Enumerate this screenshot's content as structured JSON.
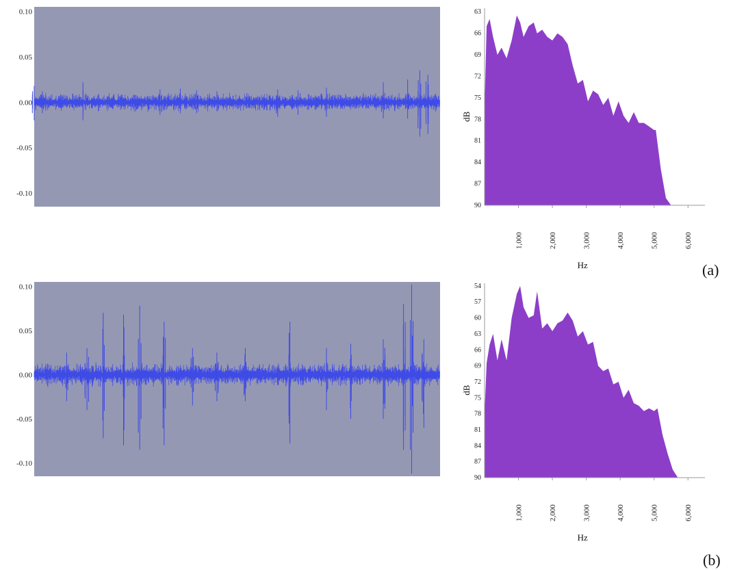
{
  "colors": {
    "wave_bg": "#9598b3",
    "wave_line": "#3f4be6",
    "spectrum_fill": "#8c3ec9",
    "axis": "#9a9a9a"
  },
  "chart_data": [
    {
      "id": "a-waveform",
      "type": "line",
      "title": "",
      "xlabel": "",
      "ylabel": "",
      "ylim": [
        -0.115,
        0.105
      ],
      "yticks": [
        "0.10",
        "0.05",
        "0.00",
        "-0.05",
        "-0.10"
      ],
      "ytick_values": [
        0.1,
        0.05,
        0.0,
        -0.05,
        -0.1
      ],
      "series": [
        {
          "x": [
            0,
            0.02,
            0.12,
            0.25,
            0.31,
            0.36,
            0.4,
            0.45,
            0.6,
            0.65,
            0.72,
            0.86,
            0.92,
            0.95,
            0.97
          ],
          "peak": [
            0.018,
            0.012,
            0.022,
            0.008,
            0.014,
            0.015,
            0.013,
            0.012,
            0.014,
            0.013,
            0.016,
            0.022,
            0.025,
            0.035,
            0.03
          ],
          "trough": [
            -0.02,
            -0.012,
            -0.02,
            -0.01,
            -0.014,
            -0.012,
            -0.012,
            -0.01,
            -0.016,
            -0.014,
            -0.016,
            -0.018,
            -0.018,
            -0.038,
            -0.035
          ]
        }
      ],
      "noise_amplitude": 0.006,
      "grid": false
    },
    {
      "id": "a-spectrum",
      "type": "area",
      "title": "",
      "xlabel": "Hz",
      "ylabel": "dB",
      "xlim": [
        0,
        6500
      ],
      "xticks": [
        "1,000",
        "2,000",
        "3,000",
        "4,000",
        "5,000",
        "6,000"
      ],
      "xtick_values": [
        1000,
        2000,
        3000,
        4000,
        5000,
        6000
      ],
      "yticks": [
        "63",
        "66",
        "69",
        "72",
        "75",
        "78",
        "81",
        "84",
        "87",
        "90"
      ],
      "ytick_values": [
        63,
        66,
        69,
        72,
        75,
        78,
        81,
        84,
        87,
        90
      ],
      "ylim": [
        62.5,
        90
      ],
      "series": [
        {
          "x": [
            0,
            60,
            150,
            250,
            380,
            500,
            650,
            800,
            950,
            1050,
            1150,
            1300,
            1450,
            1550,
            1700,
            1850,
            2000,
            2150,
            2300,
            2450,
            2600,
            2750,
            2900,
            3050,
            3200,
            3350,
            3500,
            3650,
            3800,
            3950,
            4100,
            4250,
            4400,
            4550,
            4700,
            4850,
            5000,
            5050,
            5200,
            5350,
            5500,
            5600,
            6500
          ],
          "y": [
            76.5,
            65.0,
            64.0,
            66.5,
            69.0,
            68.0,
            69.5,
            67.0,
            63.5,
            64.5,
            66.5,
            65.0,
            64.5,
            66.0,
            65.5,
            66.5,
            67.0,
            66.0,
            66.5,
            67.5,
            70.5,
            73.0,
            72.5,
            75.5,
            74.0,
            74.5,
            76.0,
            75.0,
            77.5,
            75.5,
            77.5,
            78.5,
            77.0,
            78.5,
            78.5,
            79.0,
            79.5,
            79.5,
            85.0,
            89.0,
            90.0,
            90.0,
            90.0
          ]
        }
      ],
      "grid": false
    },
    {
      "id": "b-waveform",
      "type": "line",
      "title": "",
      "xlabel": "",
      "ylabel": "",
      "ylim": [
        -0.115,
        0.105
      ],
      "yticks": [
        "0.10",
        "0.05",
        "0.00",
        "-0.05",
        "-0.10"
      ],
      "ytick_values": [
        0.1,
        0.05,
        0.0,
        -0.05,
        -0.1
      ],
      "series": [
        {
          "x": [
            0.08,
            0.13,
            0.17,
            0.22,
            0.26,
            0.32,
            0.39,
            0.45,
            0.52,
            0.63,
            0.72,
            0.78,
            0.86,
            0.91,
            0.93,
            0.96
          ],
          "peak": [
            0.025,
            0.03,
            0.07,
            0.068,
            0.078,
            0.06,
            0.03,
            0.025,
            0.03,
            0.06,
            0.03,
            0.035,
            0.04,
            0.08,
            0.102,
            0.04
          ],
          "trough": [
            -0.03,
            -0.04,
            -0.072,
            -0.08,
            -0.085,
            -0.08,
            -0.035,
            -0.03,
            -0.03,
            -0.078,
            -0.04,
            -0.05,
            -0.05,
            -0.085,
            -0.112,
            -0.06
          ]
        }
      ],
      "noise_amplitude": 0.008,
      "grid": false
    },
    {
      "id": "b-spectrum",
      "type": "area",
      "title": "",
      "xlabel": "Hz",
      "ylabel": "dB",
      "xlim": [
        0,
        6500
      ],
      "xticks": [
        "1,000",
        "2,000",
        "3,000",
        "4,000",
        "5,000",
        "6,000"
      ],
      "xtick_values": [
        1000,
        2000,
        3000,
        4000,
        5000,
        6000
      ],
      "yticks": [
        "54",
        "57",
        "60",
        "63",
        "66",
        "69",
        "72",
        "75",
        "78",
        "81",
        "84",
        "87",
        "90"
      ],
      "ytick_values": [
        54,
        57,
        60,
        63,
        66,
        69,
        72,
        75,
        78,
        81,
        84,
        87,
        90
      ],
      "ylim": [
        53.5,
        90
      ],
      "series": [
        {
          "x": [
            0,
            60,
            150,
            250,
            380,
            500,
            650,
            800,
            950,
            1050,
            1150,
            1300,
            1450,
            1550,
            1700,
            1850,
            2000,
            2150,
            2300,
            2450,
            2600,
            2750,
            2900,
            3050,
            3200,
            3350,
            3500,
            3650,
            3800,
            3950,
            4100,
            4250,
            4400,
            4550,
            4700,
            4850,
            5000,
            5100,
            5250,
            5400,
            5550,
            5700,
            6500
          ],
          "y": [
            78.0,
            68.5,
            65.0,
            63.0,
            68.0,
            64.0,
            68.0,
            60.0,
            55.5,
            54.0,
            58.0,
            60.0,
            59.5,
            55.0,
            62.0,
            61.0,
            62.5,
            61.0,
            60.5,
            59.0,
            60.5,
            63.5,
            62.5,
            65.0,
            64.5,
            69.0,
            70.0,
            69.5,
            72.5,
            72.0,
            75.0,
            73.5,
            76.0,
            76.5,
            77.5,
            77.0,
            77.5,
            77.0,
            82.0,
            85.5,
            88.5,
            90.0,
            90.0
          ]
        }
      ],
      "grid": false
    }
  ],
  "labels": {
    "panel_a": "(a)",
    "panel_b": "(b)"
  }
}
